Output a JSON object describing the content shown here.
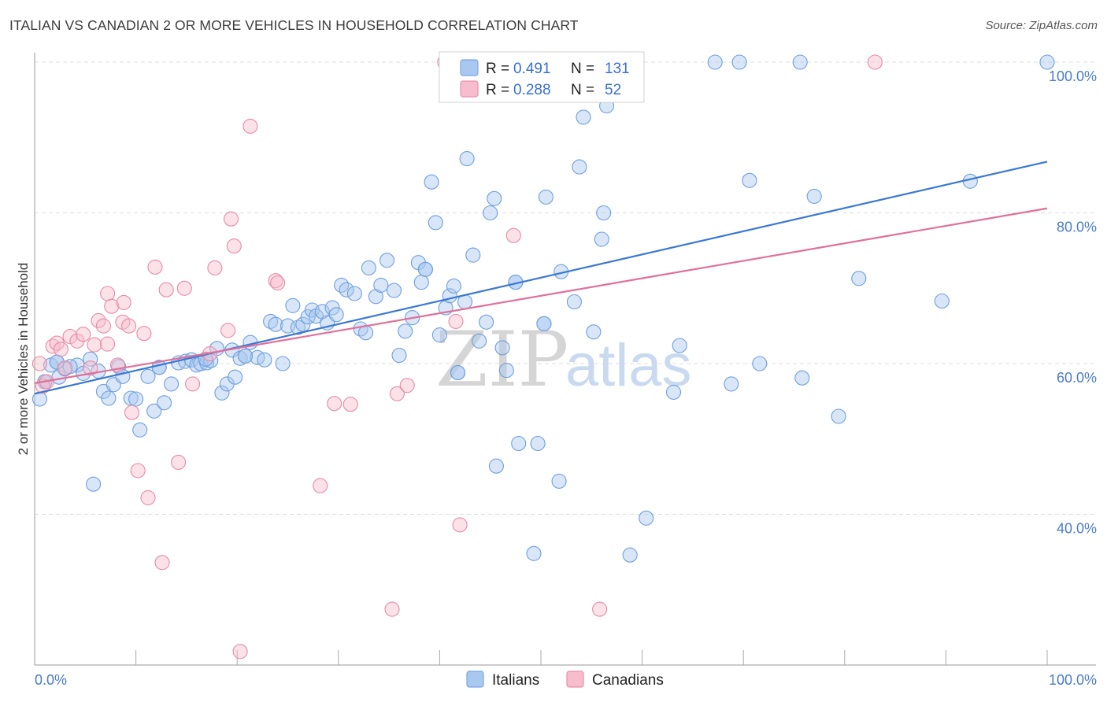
{
  "title": "ITALIAN VS CANADIAN 2 OR MORE VEHICLES IN HOUSEHOLD CORRELATION CHART",
  "source": "Source: ZipAtlas.com",
  "watermark": {
    "zip": "ZIP",
    "atlas": "atlas"
  },
  "legend": {
    "r_label": "R =",
    "n_label": "N =",
    "rows": [
      {
        "r": "0.491",
        "n": "131",
        "color": "#a9c8f0",
        "stroke": "#7aa6e0"
      },
      {
        "r": "0.288",
        "n": "52",
        "color": "#f7bccd",
        "stroke": "#ea8fab"
      }
    ]
  },
  "bottom_legend": [
    "Italians",
    "Canadians"
  ],
  "chart_data": {
    "type": "scatter",
    "xlabel": "",
    "ylabel": "2 or more Vehicles in Household",
    "x_tick_labels": [
      "0.0%",
      "100.0%"
    ],
    "y_tick_labels": [
      "40.0%",
      "60.0%",
      "80.0%",
      "100.0%"
    ],
    "y_ticks": [
      40,
      60,
      80,
      100
    ],
    "xlim": [
      0,
      100
    ],
    "ylim": [
      20,
      101
    ],
    "grid": true,
    "series": [
      {
        "name": "Italians",
        "color": "#a9c8f0",
        "stroke": "#6f9fdc",
        "trend": {
          "x": [
            0,
            100
          ],
          "y": [
            56.0,
            86.8
          ],
          "color": "#3a78d4"
        },
        "points": [
          [
            0.5,
            55.3
          ],
          [
            1.0,
            57.6
          ],
          [
            1.6,
            59.8
          ],
          [
            2.2,
            60.2
          ],
          [
            2.4,
            58.2
          ],
          [
            3.0,
            59.3
          ],
          [
            4.2,
            59.8
          ],
          [
            4.8,
            58.7
          ],
          [
            5.5,
            60.6
          ],
          [
            5.8,
            44.0
          ],
          [
            6.3,
            59.0
          ],
          [
            6.8,
            56.3
          ],
          [
            7.3,
            55.4
          ],
          [
            7.8,
            57.2
          ],
          [
            8.3,
            59.6
          ],
          [
            8.7,
            58.3
          ],
          [
            9.5,
            55.4
          ],
          [
            10.0,
            55.3
          ],
          [
            10.4,
            51.2
          ],
          [
            11.2,
            58.3
          ],
          [
            11.8,
            53.7
          ],
          [
            12.3,
            59.5
          ],
          [
            12.8,
            54.8
          ],
          [
            13.5,
            57.3
          ],
          [
            14.2,
            60.1
          ],
          [
            14.9,
            60.3
          ],
          [
            15.5,
            60.5
          ],
          [
            16.0,
            59.8
          ],
          [
            16.4,
            60.0
          ],
          [
            17.0,
            60.1
          ],
          [
            17.4,
            60.4
          ],
          [
            18.0,
            62.0
          ],
          [
            18.5,
            56.1
          ],
          [
            19.0,
            57.3
          ],
          [
            19.5,
            61.8
          ],
          [
            19.8,
            58.2
          ],
          [
            20.3,
            60.7
          ],
          [
            20.8,
            61.0
          ],
          [
            21.3,
            62.8
          ],
          [
            22.0,
            60.8
          ],
          [
            22.7,
            60.5
          ],
          [
            23.3,
            65.6
          ],
          [
            23.8,
            65.2
          ],
          [
            24.5,
            60.0
          ],
          [
            25.0,
            65.0
          ],
          [
            25.5,
            67.7
          ],
          [
            26.0,
            64.8
          ],
          [
            26.5,
            65.2
          ],
          [
            27.0,
            66.2
          ],
          [
            27.4,
            67.1
          ],
          [
            27.8,
            66.3
          ],
          [
            28.4,
            66.9
          ],
          [
            28.9,
            65.4
          ],
          [
            29.4,
            67.4
          ],
          [
            29.8,
            66.5
          ],
          [
            30.3,
            70.4
          ],
          [
            30.8,
            69.8
          ],
          [
            31.6,
            69.3
          ],
          [
            32.2,
            64.6
          ],
          [
            32.7,
            64.1
          ],
          [
            33.0,
            72.7
          ],
          [
            33.7,
            68.9
          ],
          [
            34.2,
            70.4
          ],
          [
            34.8,
            73.7
          ],
          [
            35.5,
            69.7
          ],
          [
            36.0,
            61.1
          ],
          [
            36.6,
            64.3
          ],
          [
            37.3,
            66.1
          ],
          [
            37.9,
            73.4
          ],
          [
            38.2,
            70.8
          ],
          [
            38.6,
            72.5
          ],
          [
            39.2,
            84.1
          ],
          [
            39.6,
            78.7
          ],
          [
            40.0,
            63.8
          ],
          [
            40.6,
            67.4
          ],
          [
            41.0,
            69.0
          ],
          [
            41.4,
            70.3
          ],
          [
            41.8,
            58.8
          ],
          [
            42.5,
            68.2
          ],
          [
            42.7,
            87.2
          ],
          [
            43.3,
            74.4
          ],
          [
            43.9,
            63.0
          ],
          [
            44.6,
            65.5
          ],
          [
            45.0,
            80.0
          ],
          [
            45.4,
            81.9
          ],
          [
            45.6,
            46.4
          ],
          [
            46.2,
            62.1
          ],
          [
            46.6,
            59.1
          ],
          [
            47.5,
            70.8
          ],
          [
            47.8,
            49.4
          ],
          [
            49.3,
            34.8
          ],
          [
            49.7,
            49.4
          ],
          [
            50.3,
            65.3
          ],
          [
            50.5,
            82.1
          ],
          [
            51.0,
            100.0
          ],
          [
            51.8,
            44.4
          ],
          [
            52.0,
            72.2
          ],
          [
            53.3,
            68.2
          ],
          [
            53.8,
            86.1
          ],
          [
            54.2,
            92.7
          ],
          [
            55.2,
            64.2
          ],
          [
            56.0,
            76.5
          ],
          [
            56.2,
            80.0
          ],
          [
            56.5,
            94.2
          ],
          [
            58.8,
            34.6
          ],
          [
            60.4,
            39.5
          ],
          [
            63.1,
            56.2
          ],
          [
            63.7,
            62.4
          ],
          [
            67.2,
            100.0
          ],
          [
            68.8,
            57.3
          ],
          [
            69.6,
            100.0
          ],
          [
            70.6,
            84.3
          ],
          [
            71.6,
            60.0
          ],
          [
            75.6,
            100.0
          ],
          [
            75.8,
            58.1
          ],
          [
            77.0,
            82.2
          ],
          [
            79.4,
            53.0
          ],
          [
            81.4,
            71.3
          ],
          [
            89.6,
            68.3
          ],
          [
            92.4,
            84.2
          ],
          [
            100.0,
            100.0
          ],
          [
            1.0,
            57.6
          ],
          [
            2.2,
            60.2
          ],
          [
            3.5,
            59.6
          ],
          [
            12.3,
            59.5
          ],
          [
            16.9,
            60.6
          ],
          [
            20.8,
            61.0
          ],
          [
            38.6,
            72.5
          ],
          [
            41.8,
            58.8
          ],
          [
            47.5,
            70.8
          ],
          [
            50.3,
            65.3
          ]
        ]
      },
      {
        "name": "Canadians",
        "color": "#f7bccd",
        "stroke": "#e88aa8",
        "trend": {
          "x": [
            0,
            100
          ],
          "y": [
            57.4,
            80.6
          ],
          "color": "#e0709a"
        },
        "points": [
          [
            0.5,
            60.0
          ],
          [
            0.8,
            57.0
          ],
          [
            1.2,
            57.6
          ],
          [
            1.8,
            62.3
          ],
          [
            2.2,
            62.7
          ],
          [
            2.6,
            61.9
          ],
          [
            3.0,
            59.4
          ],
          [
            3.5,
            63.6
          ],
          [
            4.2,
            63.0
          ],
          [
            4.8,
            63.9
          ],
          [
            5.5,
            59.4
          ],
          [
            5.9,
            62.5
          ],
          [
            6.3,
            65.7
          ],
          [
            6.8,
            65.0
          ],
          [
            7.2,
            62.6
          ],
          [
            7.2,
            69.3
          ],
          [
            7.6,
            67.6
          ],
          [
            8.2,
            59.8
          ],
          [
            8.7,
            65.5
          ],
          [
            8.8,
            68.1
          ],
          [
            9.3,
            65.0
          ],
          [
            9.6,
            53.5
          ],
          [
            10.2,
            45.8
          ],
          [
            10.8,
            64.0
          ],
          [
            11.2,
            42.2
          ],
          [
            11.9,
            72.8
          ],
          [
            12.6,
            33.6
          ],
          [
            13.0,
            69.8
          ],
          [
            14.2,
            46.9
          ],
          [
            14.8,
            70.0
          ],
          [
            15.6,
            57.3
          ],
          [
            17.3,
            61.3
          ],
          [
            17.8,
            72.7
          ],
          [
            19.1,
            64.4
          ],
          [
            19.4,
            79.2
          ],
          [
            19.7,
            75.6
          ],
          [
            20.3,
            21.8
          ],
          [
            21.3,
            91.5
          ],
          [
            23.8,
            71.0
          ],
          [
            24.0,
            70.7
          ],
          [
            28.2,
            43.8
          ],
          [
            29.6,
            54.7
          ],
          [
            31.2,
            54.6
          ],
          [
            35.3,
            27.4
          ],
          [
            35.8,
            56.0
          ],
          [
            36.8,
            57.1
          ],
          [
            40.5,
            100.0
          ],
          [
            41.6,
            65.6
          ],
          [
            42.0,
            38.6
          ],
          [
            47.3,
            77.0
          ],
          [
            55.8,
            27.4
          ],
          [
            83.0,
            100.0
          ]
        ]
      }
    ]
  }
}
